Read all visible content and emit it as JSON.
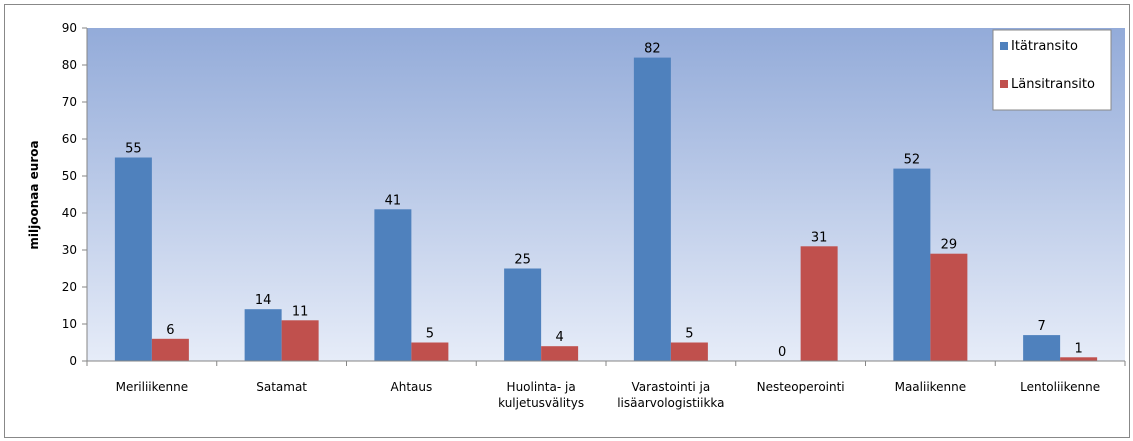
{
  "chart_data": {
    "type": "bar",
    "title": "",
    "xlabel": "",
    "ylabel": "miljoonaa euroa",
    "ylim": [
      0,
      90
    ],
    "yticks": [
      0,
      10,
      20,
      30,
      40,
      50,
      60,
      70,
      80,
      90
    ],
    "grid": false,
    "legend_position": "top-right",
    "categories": [
      "Meriliikenne",
      "Satamat",
      "Ahtaus",
      "Huolinta- ja kuljetusvälitys",
      "Varastointi ja lisäarvologistiikka",
      "Nesteoperointi",
      "Maaliikenne",
      "Lentoliikenne"
    ],
    "category_lines": [
      [
        "Meriliikenne"
      ],
      [
        "Satamat"
      ],
      [
        "Ahtaus"
      ],
      [
        "Huolinta- ja",
        "kuljetusvälitys"
      ],
      [
        "Varastointi ja",
        "lisäarvologistiikka"
      ],
      [
        "Nesteoperointi"
      ],
      [
        "Maaliikenne"
      ],
      [
        "Lentoliikenne"
      ]
    ],
    "series": [
      {
        "name": "Itätransito",
        "color": "#4F81BD",
        "values": [
          55,
          14,
          41,
          25,
          82,
          0,
          52,
          7
        ],
        "labels": [
          "55",
          "14",
          "41",
          "25",
          "82",
          "0",
          "52",
          "7"
        ]
      },
      {
        "name": "Länsitransito",
        "color": "#C0504D",
        "values": [
          6,
          11,
          5,
          4,
          5,
          31,
          29,
          1
        ],
        "labels": [
          "6",
          "11",
          "5",
          "4",
          "5",
          "31",
          "29",
          "1"
        ]
      }
    ],
    "plot_gradient": [
      "#93ABD9",
      "#E6ECF8"
    ]
  }
}
